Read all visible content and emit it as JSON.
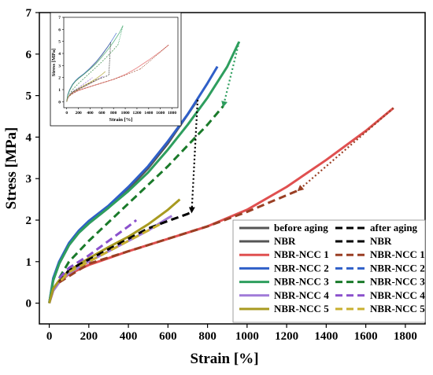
{
  "chart_data": {
    "type": "line",
    "title": "",
    "xlabel": "Strain [%]",
    "ylabel": "Stress [MPa]",
    "xlim": [
      -50,
      1900
    ],
    "ylim": [
      -0.5,
      7
    ],
    "xticks": [
      0,
      200,
      400,
      600,
      800,
      1000,
      1200,
      1400,
      1600,
      1800
    ],
    "yticks": [
      0,
      1,
      2,
      3,
      4,
      5,
      6,
      7
    ],
    "legend": {
      "placement": "bottom-right",
      "col1_header": "before aging",
      "col2_header": "after aging"
    },
    "series": [
      {
        "name": "NBR",
        "group": "before aging",
        "color": "#555555",
        "x": [
          0,
          20,
          50,
          100,
          150,
          200,
          300,
          400,
          500,
          600,
          700,
          750
        ],
        "y": [
          0,
          0.55,
          0.95,
          1.4,
          1.7,
          1.92,
          2.3,
          2.75,
          3.25,
          3.85,
          4.55,
          4.9
        ]
      },
      {
        "name": "NBR-NCC 1",
        "group": "before aging",
        "color": "#e05050",
        "x": [
          0,
          20,
          50,
          100,
          200,
          400,
          600,
          800,
          1000,
          1200,
          1400,
          1600,
          1740
        ],
        "y": [
          0,
          0.3,
          0.5,
          0.7,
          0.92,
          1.25,
          1.55,
          1.85,
          2.25,
          2.8,
          3.45,
          4.15,
          4.7
        ]
      },
      {
        "name": "NBR-NCC 2",
        "group": "before aging",
        "color": "#2f5fc8",
        "x": [
          0,
          20,
          50,
          100,
          150,
          200,
          300,
          400,
          500,
          600,
          700,
          800,
          850
        ],
        "y": [
          0,
          0.6,
          1.0,
          1.45,
          1.75,
          1.98,
          2.35,
          2.8,
          3.3,
          3.9,
          4.55,
          5.3,
          5.7
        ]
      },
      {
        "name": "NBR-NCC 3",
        "group": "before aging",
        "color": "#2e9e5e",
        "x": [
          0,
          20,
          50,
          100,
          150,
          200,
          300,
          400,
          500,
          600,
          700,
          800,
          900,
          960
        ],
        "y": [
          0,
          0.55,
          0.95,
          1.4,
          1.7,
          1.92,
          2.3,
          2.7,
          3.15,
          3.7,
          4.3,
          4.95,
          5.7,
          6.3
        ]
      },
      {
        "name": "NBR-NCC 4",
        "group": "before aging",
        "color": "#a07ad8",
        "x": [
          0,
          20,
          50,
          100,
          200,
          300,
          400,
          500,
          600,
          620
        ],
        "y": [
          0,
          0.3,
          0.5,
          0.72,
          1.0,
          1.25,
          1.5,
          1.75,
          2.05,
          2.1
        ]
      },
      {
        "name": "NBR-NCC 5",
        "group": "before aging",
        "color": "#a89a20",
        "x": [
          0,
          20,
          50,
          100,
          200,
          300,
          400,
          500,
          600,
          660
        ],
        "y": [
          0,
          0.35,
          0.55,
          0.78,
          1.08,
          1.35,
          1.6,
          1.9,
          2.25,
          2.5
        ]
      },
      {
        "name": "NBR",
        "group": "after aging",
        "color": "#000000",
        "x": [
          50,
          100,
          200,
          300,
          400,
          500,
          600,
          700,
          720
        ],
        "y": [
          0.5,
          0.8,
          1.05,
          1.3,
          1.55,
          1.8,
          1.98,
          2.15,
          2.2
        ]
      },
      {
        "name": "NBR-NCC 1",
        "group": "after aging",
        "color": "#9a3f24",
        "x": [
          50,
          200,
          400,
          600,
          800,
          1000,
          1100,
          1200,
          1260
        ],
        "y": [
          0.5,
          0.95,
          1.25,
          1.55,
          1.85,
          2.2,
          2.4,
          2.6,
          2.72
        ]
      },
      {
        "name": "NBR-NCC 2",
        "group": "after aging",
        "color": "#2f5fc8",
        "x": [],
        "y": []
      },
      {
        "name": "NBR-NCC 3",
        "group": "after aging",
        "color": "#1a7a2a",
        "x": [
          50,
          100,
          200,
          300,
          400,
          500,
          600,
          700,
          800,
          880
        ],
        "y": [
          0.6,
          1.0,
          1.5,
          1.95,
          2.4,
          2.85,
          3.3,
          3.8,
          4.3,
          4.75
        ]
      },
      {
        "name": "NBR-NCC 4",
        "group": "after aging",
        "color": "#8a50cc",
        "x": [
          50,
          100,
          200,
          300,
          400,
          440
        ],
        "y": [
          0.6,
          0.85,
          1.15,
          1.5,
          1.85,
          2.0
        ]
      },
      {
        "name": "NBR-NCC 5",
        "group": "after aging",
        "color": "#c9b030",
        "x": [
          60,
          100,
          200,
          300,
          400,
          520,
          560
        ],
        "y": [
          0.55,
          0.75,
          1.0,
          1.25,
          1.5,
          1.8,
          1.9
        ]
      }
    ],
    "arrows": [
      {
        "color": "#000000",
        "from": [
          750,
          4.9
        ],
        "to": [
          720,
          2.2
        ]
      },
      {
        "color": "#9a3f24",
        "from": [
          1740,
          4.7
        ],
        "to": [
          1260,
          2.72
        ]
      },
      {
        "color": "#2e9e5e",
        "from": [
          960,
          6.3
        ],
        "to": [
          880,
          4.75
        ]
      }
    ],
    "inset": {
      "xlabel": "Strain [%]",
      "ylabel": "Stress [MPa]",
      "xlim": [
        -50,
        1900
      ],
      "ylim": [
        -0.5,
        7
      ],
      "xticks": [
        0,
        200,
        400,
        600,
        800,
        1000,
        1200,
        1400,
        1600,
        1800
      ],
      "yticks": [
        0,
        1,
        2,
        3,
        4,
        5,
        6,
        7
      ]
    }
  }
}
